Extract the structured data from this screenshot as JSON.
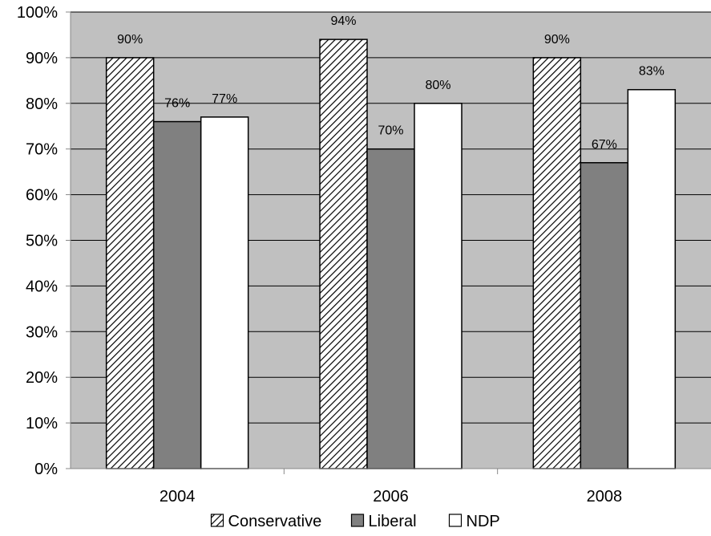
{
  "chart_data": {
    "type": "bar",
    "categories": [
      "2004",
      "2006",
      "2008"
    ],
    "series": [
      {
        "name": "Conservative",
        "values": [
          90,
          94,
          90
        ],
        "labels": [
          "90%",
          "94%",
          "90%"
        ],
        "fill": "hatch"
      },
      {
        "name": "Liberal",
        "values": [
          76,
          70,
          67
        ],
        "labels": [
          "76%",
          "70%",
          "67%"
        ],
        "fill": "#808080"
      },
      {
        "name": "NDP",
        "values": [
          77,
          80,
          83
        ],
        "labels": [
          "77%",
          "80%",
          "83%"
        ],
        "fill": "#ffffff"
      }
    ],
    "y_ticks": [
      "0%",
      "10%",
      "20%",
      "30%",
      "40%",
      "50%",
      "60%",
      "70%",
      "80%",
      "90%",
      "100%"
    ],
    "ylim": [
      0,
      100
    ],
    "title": "",
    "xlabel": "",
    "ylabel": "",
    "grid": true,
    "legend_position": "bottom",
    "plot_background": "#c0c0c0"
  }
}
